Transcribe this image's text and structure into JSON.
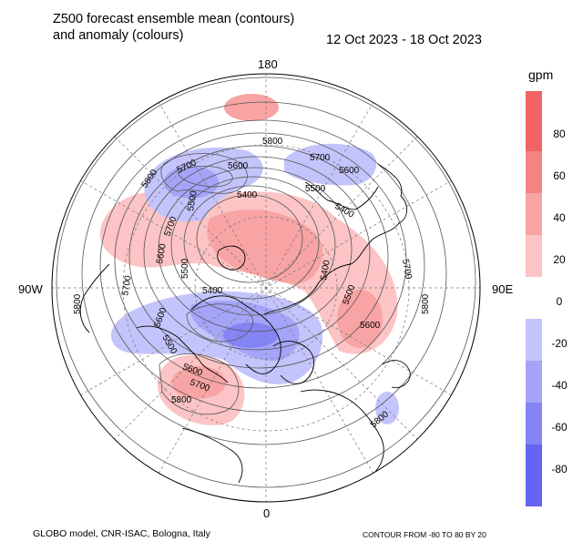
{
  "title": {
    "line1": "Z500 forecast ensemble mean (contours)",
    "line2": "and anomaly (colours)",
    "dates": "12 Oct 2023 - 18 Oct 2023"
  },
  "longitude_labels": {
    "top": "180",
    "left": "90W",
    "right": "90E",
    "bottom": "0"
  },
  "contour_labels": [
    "5800",
    "5700",
    "5600",
    "5500",
    "5400",
    "5700",
    "5600",
    "5500",
    "5400",
    "5800",
    "5700",
    "5600",
    "5500",
    "5800",
    "5700",
    "5600",
    "5500",
    "5400",
    "5600",
    "5700",
    "5800",
    "5800",
    "5700",
    "5600",
    "5500",
    "5400",
    "5800"
  ],
  "colorbar": {
    "unit": "gpm",
    "ticks": [
      "80",
      "60",
      "40",
      "20",
      "0",
      "-20",
      "-40",
      "-60",
      "-80"
    ],
    "colors": {
      "pos80": "#f06464",
      "pos60": "#f48484",
      "pos40": "#f8a4a4",
      "pos20": "#fcc4c4",
      "neutral": "#ffffff",
      "neg20": "#c4c4fc",
      "neg40": "#a4a4f8",
      "neg60": "#8484f4",
      "neg80": "#6464f0"
    }
  },
  "footer": {
    "left": "GLOBO model, CNR-ISAC, Bologna, Italy",
    "right": "CONTOUR FROM -80 TO 80 BY 20"
  }
}
